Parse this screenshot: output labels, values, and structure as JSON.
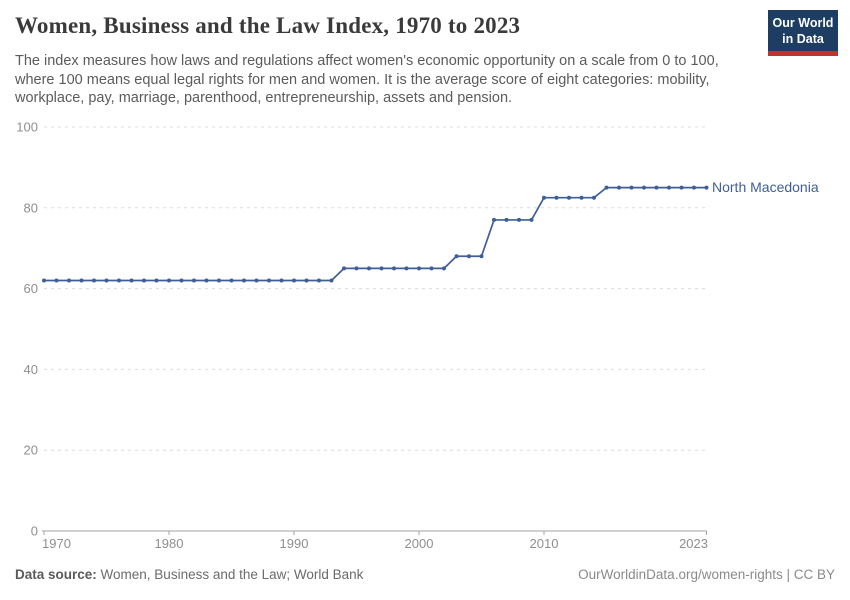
{
  "header": {
    "title": "Women, Business and the Law Index, 1970 to 2023",
    "subtitle_lines": [
      "The index measures how laws and regulations affect women's economic opportunity on a scale from 0 to 100,",
      "where 100 means equal legal rights for men and women. It is the average score of eight categories: mobility,",
      "workplace, pay, marriage, parenthood, entrepreneurship, assets and pension."
    ],
    "logo": {
      "line1": "Our World",
      "line2": "in Data",
      "bg_color": "#1d3d63",
      "stripe_color": "#c0342d"
    }
  },
  "chart_data": {
    "type": "line",
    "title": "Women, Business and the Law Index, 1970 to 2023",
    "xlabel": "",
    "ylabel": "",
    "xlim": [
      1970,
      2023
    ],
    "ylim": [
      0,
      100
    ],
    "x_ticks": [
      1970,
      1980,
      1990,
      2000,
      2010,
      2023
    ],
    "y_ticks": [
      0,
      20,
      40,
      60,
      80,
      100
    ],
    "grid": "horizontal-dashed",
    "legend_position": "end-of-line-label",
    "series": [
      {
        "name": "North Macedonia",
        "color": "#3f5e96",
        "x": [
          1970,
          1971,
          1972,
          1973,
          1974,
          1975,
          1976,
          1977,
          1978,
          1979,
          1980,
          1981,
          1982,
          1983,
          1984,
          1985,
          1986,
          1987,
          1988,
          1989,
          1990,
          1991,
          1992,
          1993,
          1994,
          1995,
          1996,
          1997,
          1998,
          1999,
          2000,
          2001,
          2002,
          2003,
          2004,
          2005,
          2006,
          2007,
          2008,
          2009,
          2010,
          2011,
          2012,
          2013,
          2014,
          2015,
          2016,
          2017,
          2018,
          2019,
          2020,
          2021,
          2022,
          2023
        ],
        "y": [
          62,
          62,
          62,
          62,
          62,
          62,
          62,
          62,
          62,
          62,
          62,
          62,
          62,
          62,
          62,
          62,
          62,
          62,
          62,
          62,
          62,
          62,
          62,
          62,
          65,
          65,
          65,
          65,
          65,
          65,
          65,
          65,
          65,
          68,
          68,
          68,
          77,
          77,
          77,
          77,
          82.5,
          82.5,
          82.5,
          82.5,
          82.5,
          85,
          85,
          85,
          85,
          85,
          85,
          85,
          85,
          85
        ]
      }
    ]
  },
  "footer": {
    "datasource_label": "Data source:",
    "datasource_value": " Women, Business and the Law; World Bank",
    "link": "OurWorldinData.org/women-rights | CC BY"
  },
  "colors": {
    "line": "#3f5e96",
    "grid": "#dcdcdc",
    "axis": "#a3a3a3",
    "tick_label": "#8f8f8f",
    "title_text": "#3a3a3a",
    "subtitle_text": "#5b5b5b",
    "logo_bg": "#1d3d63",
    "logo_stripe": "#c0342d"
  }
}
